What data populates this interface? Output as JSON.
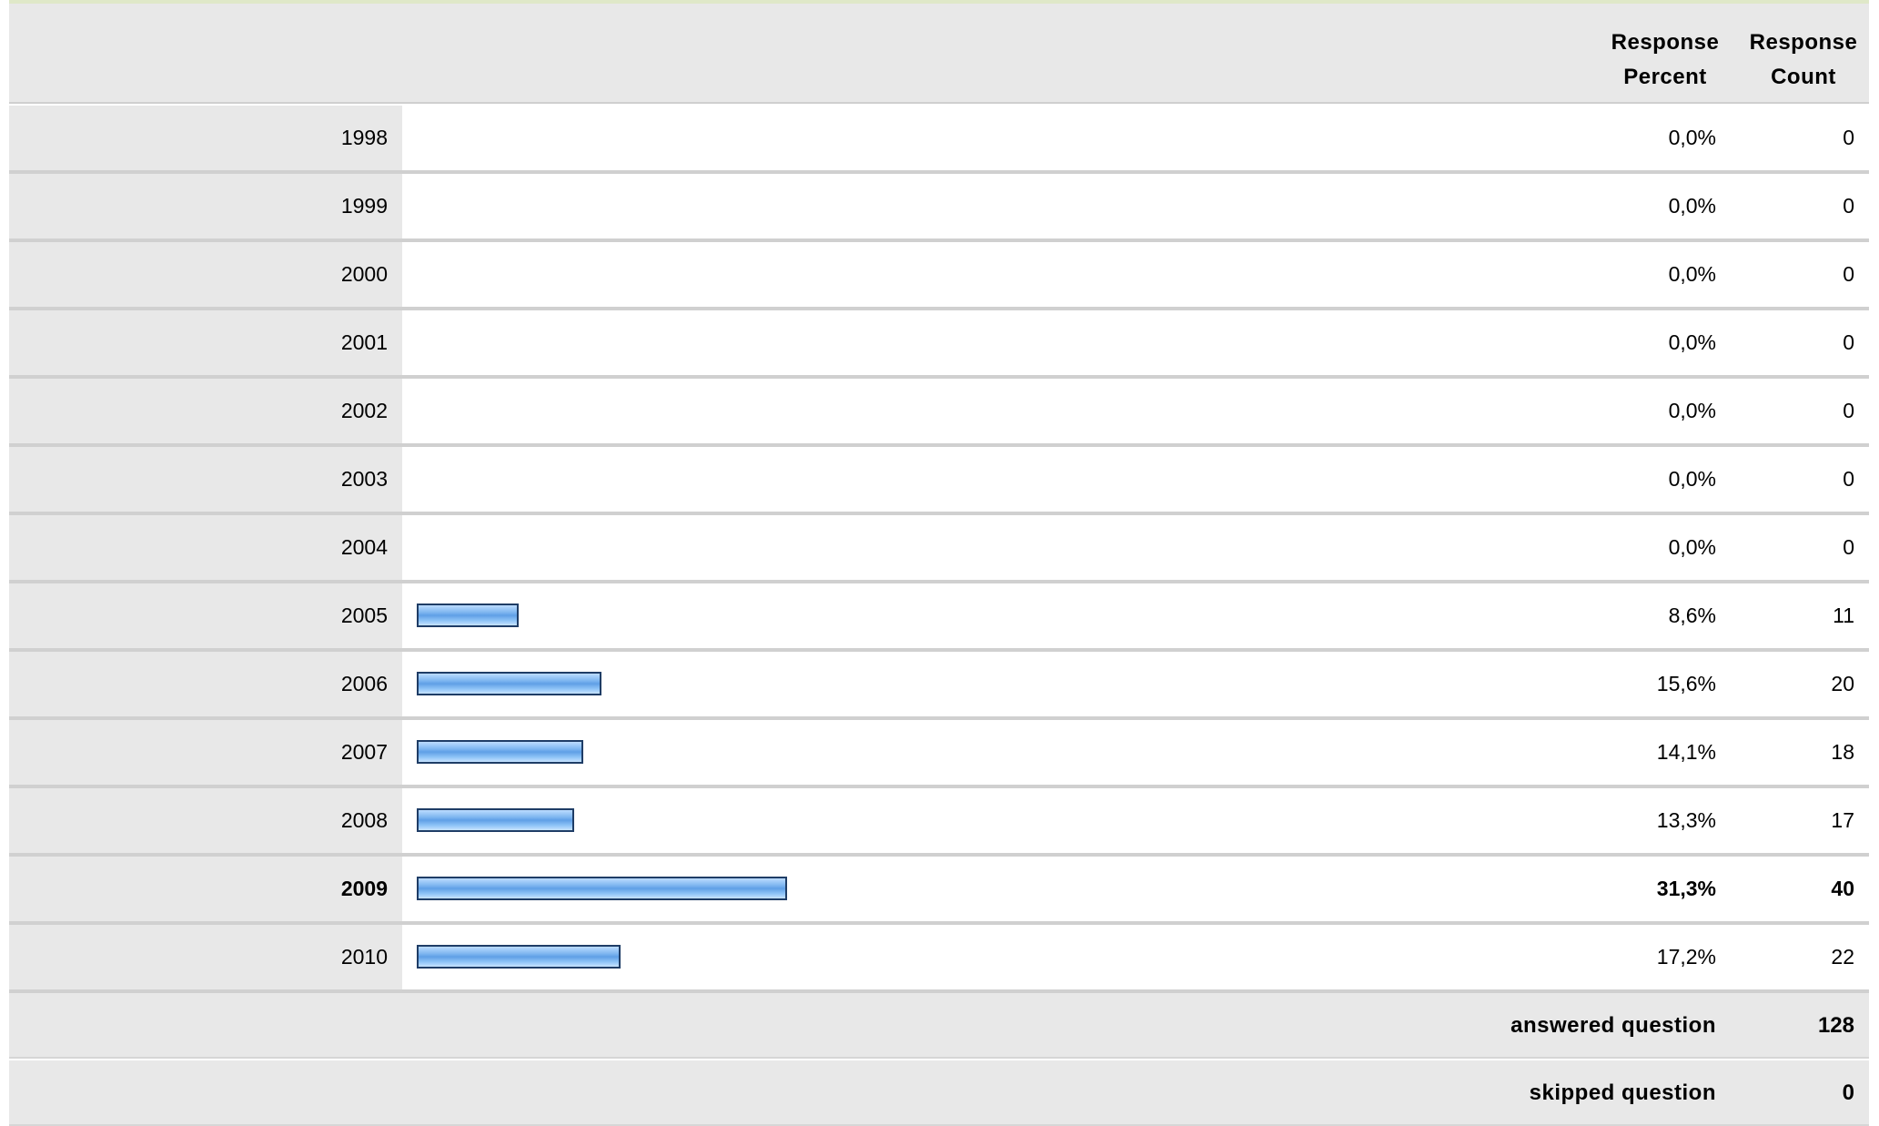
{
  "chart_data": {
    "type": "bar",
    "orientation": "horizontal",
    "columns": {
      "percent_header": "Response\nPercent",
      "count_header": "Response\nCount"
    },
    "categories": [
      "1998",
      "1999",
      "2000",
      "2001",
      "2002",
      "2003",
      "2004",
      "2005",
      "2006",
      "2007",
      "2008",
      "2009",
      "2010"
    ],
    "values": [
      0.0,
      0.0,
      0.0,
      0.0,
      0.0,
      0.0,
      0.0,
      8.6,
      15.6,
      14.1,
      13.3,
      31.3,
      17.2
    ],
    "percent_labels": [
      "0,0%",
      "0,0%",
      "0,0%",
      "0,0%",
      "0,0%",
      "0,0%",
      "0,0%",
      "8,6%",
      "15,6%",
      "14,1%",
      "13,3%",
      "31,3%",
      "17,2%"
    ],
    "counts": [
      "0",
      "0",
      "0",
      "0",
      "0",
      "0",
      "0",
      "11",
      "20",
      "18",
      "17",
      "40",
      "22"
    ],
    "highlight_index": 11,
    "xlim": [
      0,
      100
    ],
    "bar_color": "#7fb6f0",
    "bar_border": "#1f3d66"
  },
  "summary": {
    "answered_label": "answered question",
    "answered_value": "128",
    "skipped_label": "skipped question",
    "skipped_value": "0"
  },
  "colors": {
    "label_bg": "#e8e8e8",
    "divider": "#d0d0d0",
    "top_accent": "#dfe8c8"
  }
}
